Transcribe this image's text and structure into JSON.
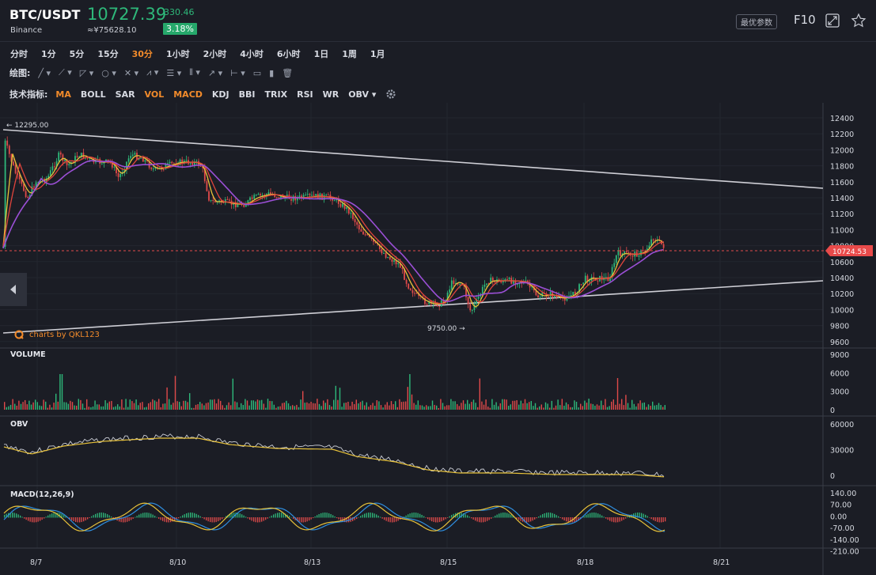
{
  "header": {
    "symbol": "BTC/USDT",
    "exchange": "Binance",
    "price": "10727.39",
    "cny_price": "≈¥75628.10",
    "change": "330.46",
    "change_pct": "3.18%",
    "params_label": "最优参数",
    "f10_label": "F10"
  },
  "timeframes": [
    {
      "label": "分时",
      "active": false
    },
    {
      "label": "1分",
      "active": false
    },
    {
      "label": "5分",
      "active": false
    },
    {
      "label": "15分",
      "active": false
    },
    {
      "label": "30分",
      "active": true
    },
    {
      "label": "1小时",
      "active": false
    },
    {
      "label": "2小时",
      "active": false
    },
    {
      "label": "4小时",
      "active": false
    },
    {
      "label": "6小时",
      "active": false
    },
    {
      "label": "1日",
      "active": false
    },
    {
      "label": "1周",
      "active": false
    },
    {
      "label": "1月",
      "active": false
    }
  ],
  "drawing": {
    "label": "绘图:",
    "tools": [
      "line-tool-icon",
      "ray-tool-icon",
      "polyline-tool-icon",
      "shape-tool-icon",
      "fib-tool-icon",
      "pattern-tool-icon",
      "channel-tool-icon",
      "gann-tool-icon",
      "arrow-tool-icon",
      "measure-tool-icon",
      "note-tool-icon",
      "bar-tool-icon",
      "trash-icon"
    ]
  },
  "indicators": {
    "label": "技术指标:",
    "items": [
      {
        "label": "MA",
        "on": true
      },
      {
        "label": "BOLL",
        "on": false
      },
      {
        "label": "SAR",
        "on": false
      },
      {
        "label": "VOL",
        "on": true
      },
      {
        "label": "MACD",
        "on": true
      },
      {
        "label": "KDJ",
        "on": false
      },
      {
        "label": "BBI",
        "on": false
      },
      {
        "label": "TRIX",
        "on": false
      },
      {
        "label": "RSI",
        "on": false
      },
      {
        "label": "WR",
        "on": false
      },
      {
        "label": "OBV ▾",
        "on": false
      }
    ]
  },
  "main_chart": {
    "high_marker": "← 12295.00",
    "low_marker": "9750.00 →",
    "current_price_tag": "10724.53",
    "watermark": "charts by QKL123",
    "y_ticks": [
      "12400",
      "12200",
      "12000",
      "11800",
      "11600",
      "11400",
      "11200",
      "11000",
      "10800",
      "10600",
      "10400",
      "10200",
      "10000",
      "9800",
      "9600"
    ]
  },
  "volume": {
    "label": "VOLUME",
    "y_ticks": [
      "9000",
      "6000",
      "3000",
      "0"
    ]
  },
  "obv": {
    "label": "OBV",
    "y_ticks": [
      "60000",
      "30000",
      "0"
    ]
  },
  "macd": {
    "label": "MACD(12,26,9)",
    "y_ticks": [
      "140.00",
      "70.00",
      "0.00",
      "-70.00",
      "-140.00",
      "-210.00"
    ]
  },
  "x_ticks": [
    "8/7",
    "8/10",
    "8/13",
    "8/15",
    "8/18",
    "8/21"
  ],
  "colors": {
    "up": "#2eb87a",
    "down": "#e04a4a",
    "accent": "#f28b2b",
    "ma_yellow": "#e8c23a",
    "ma_red": "#e0443c",
    "ma_purple": "#9b4fd6",
    "trendline": "#cfcfd6",
    "macd_blue": "#2f8fe0"
  }
}
